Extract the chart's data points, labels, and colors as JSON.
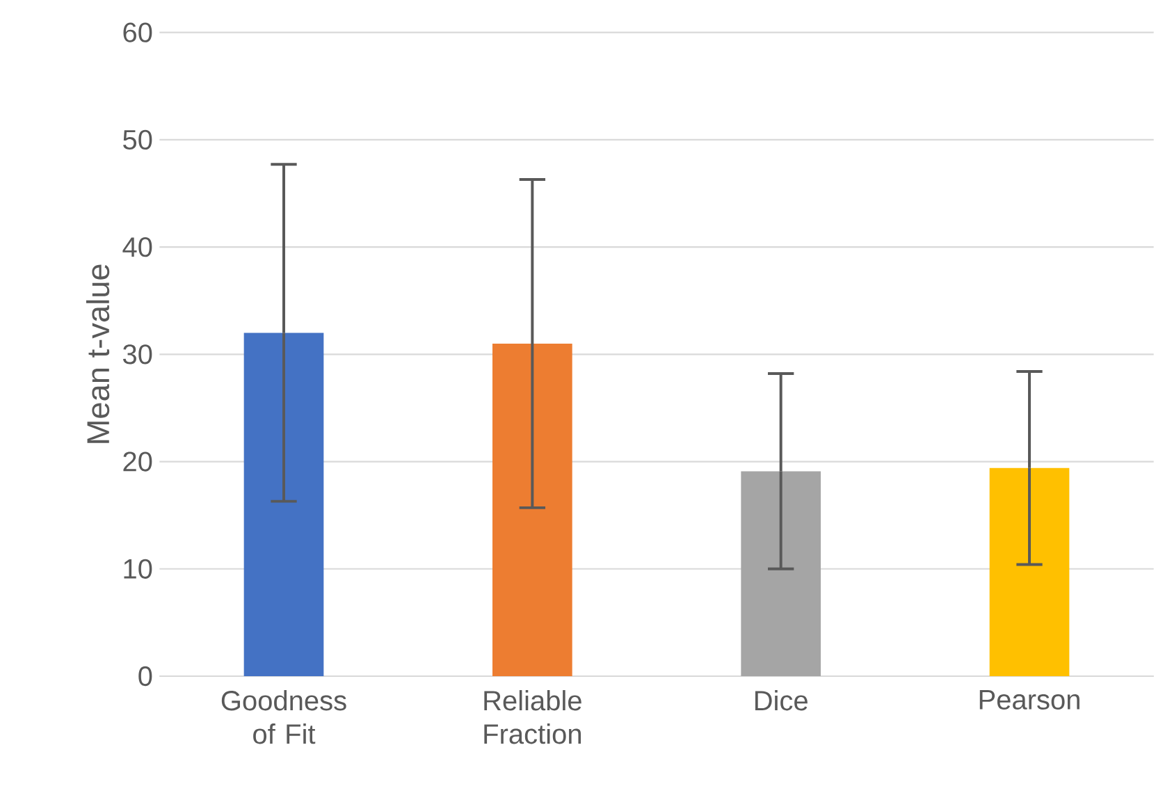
{
  "chart_data": {
    "type": "bar",
    "ylabel": "Mean t-value",
    "categories": [
      "Goodness of Fit",
      "Reliable Fraction",
      "Dice",
      "Pearson"
    ],
    "values": [
      32,
      31,
      19.1,
      19.4
    ],
    "errors": [
      15.7,
      15.3,
      9.1,
      9.0
    ],
    "colors": [
      "#4472c4",
      "#ed7d31",
      "#a5a5a5",
      "#ffc000"
    ],
    "ylim": [
      0,
      60
    ],
    "yticks": [
      0,
      10,
      20,
      30,
      40,
      50,
      60
    ],
    "grid": "y"
  }
}
